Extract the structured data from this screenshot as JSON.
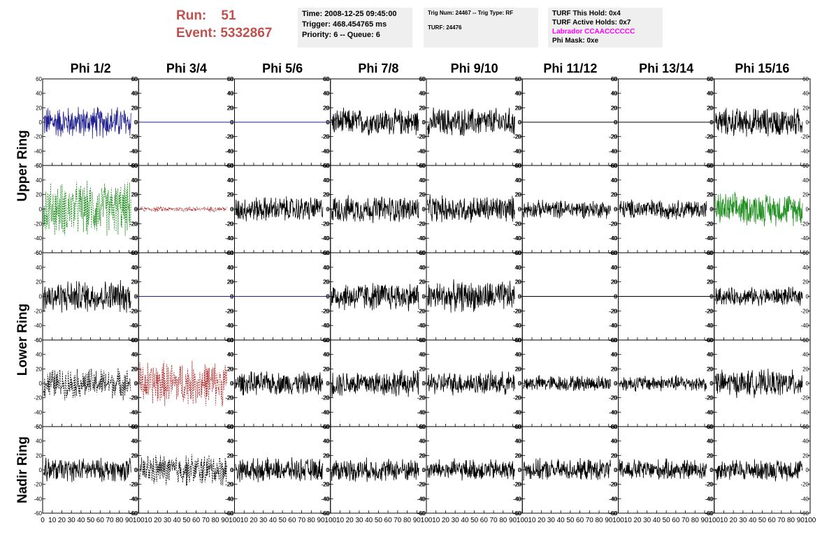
{
  "header": {
    "run_label": "Run:",
    "run_value": "51",
    "event_label": "Event:",
    "event_value": "5332867",
    "time_box": {
      "time": "Time: 2008-12-25 09:45:00",
      "trigger": "Trigger: 468.454765 ms",
      "priority": "Priority: 6 -- Queue: 6"
    },
    "trig_box": {
      "trig": "Trig Num: 24467 -- Trig Type: RF",
      "turf": "TURF: 24476"
    },
    "turf_box": {
      "this_hold": "TURF This Hold: 0x4",
      "active_holds": "TURF Active Holds: 0x7",
      "labrador": "Labrador CCAACCCCCC",
      "phi_mask": "Phi Mask: 0xe"
    }
  },
  "colors": {
    "run_text": "#c0504d",
    "labrador_text": "#ff00ff",
    "info_box_bg": "#efefef",
    "blue_trace": "#1f1f8f",
    "green_trace": "#1f8f1f",
    "red_trace": "#b03030",
    "black_trace": "#000000"
  },
  "chart_data": {
    "type": "line",
    "description_type": "waveform grid",
    "columns": [
      "Phi 1/2",
      "Phi 3/4",
      "Phi 5/6",
      "Phi 7/8",
      "Phi 9/10",
      "Phi 11/12",
      "Phi 13/14",
      "Phi 15/16"
    ],
    "ring_labels": [
      "Upper Ring",
      "Lower Ring",
      "Nadir Ring"
    ],
    "xlim": [
      0,
      100
    ],
    "ylim": [
      -60,
      60
    ],
    "y_ticks": [
      60,
      40,
      20,
      0,
      -20,
      -40,
      -60
    ],
    "x_ticks": [
      0,
      10,
      20,
      30,
      40,
      50,
      60,
      70,
      80,
      90,
      100
    ],
    "x_tick_labels_row": [
      "0",
      "10",
      "20",
      "30",
      "40",
      "50",
      "60",
      "70",
      "80",
      "90",
      "100"
    ],
    "panels": [
      [
        {
          "style": "solid",
          "color": "blue",
          "amplitude": 18,
          "flat": false
        },
        {
          "style": "flat",
          "color": "blue",
          "amplitude": 0,
          "flat": true
        },
        {
          "style": "flat",
          "color": "blue",
          "amplitude": 0,
          "flat": true
        },
        {
          "style": "solid",
          "color": "black",
          "amplitude": 15,
          "flat": false
        },
        {
          "style": "solid",
          "color": "black",
          "amplitude": 16,
          "flat": false
        },
        {
          "style": "flat",
          "color": "black",
          "amplitude": 0,
          "flat": true
        },
        {
          "style": "flat",
          "color": "black",
          "amplitude": 0,
          "flat": true
        },
        {
          "style": "solid",
          "color": "black",
          "amplitude": 16,
          "flat": false
        }
      ],
      [
        {
          "style": "dashed",
          "color": "green",
          "amplitude": 30,
          "flat": false
        },
        {
          "style": "dashed",
          "color": "red",
          "amplitude": 3,
          "flat": false
        },
        {
          "style": "solid",
          "color": "black",
          "amplitude": 14,
          "flat": false
        },
        {
          "style": "solid",
          "color": "black",
          "amplitude": 15,
          "flat": false
        },
        {
          "style": "solid",
          "color": "black",
          "amplitude": 15,
          "flat": false
        },
        {
          "style": "solid",
          "color": "black",
          "amplitude": 10,
          "flat": false
        },
        {
          "style": "solid",
          "color": "black",
          "amplitude": 11,
          "flat": false
        },
        {
          "style": "solid",
          "color": "green",
          "amplitude": 18,
          "flat": false
        }
      ],
      [
        {
          "style": "solid",
          "color": "black",
          "amplitude": 18,
          "flat": false
        },
        {
          "style": "flat",
          "color": "blue",
          "amplitude": 0,
          "flat": true
        },
        {
          "style": "flat",
          "color": "blue",
          "amplitude": 0,
          "flat": true
        },
        {
          "style": "solid",
          "color": "black",
          "amplitude": 16,
          "flat": false
        },
        {
          "style": "solid",
          "color": "black",
          "amplitude": 17,
          "flat": false
        },
        {
          "style": "flat",
          "color": "black",
          "amplitude": 0,
          "flat": true
        },
        {
          "style": "flat",
          "color": "black",
          "amplitude": 0,
          "flat": true
        },
        {
          "style": "solid",
          "color": "black",
          "amplitude": 10,
          "flat": false
        }
      ],
      [
        {
          "style": "dashed",
          "color": "black",
          "amplitude": 17,
          "flat": false
        },
        {
          "style": "dashed",
          "color": "red",
          "amplitude": 25,
          "flat": false
        },
        {
          "style": "solid",
          "color": "black",
          "amplitude": 13,
          "flat": false
        },
        {
          "style": "solid",
          "color": "black",
          "amplitude": 15,
          "flat": false
        },
        {
          "style": "solid",
          "color": "black",
          "amplitude": 13,
          "flat": false
        },
        {
          "style": "solid",
          "color": "black",
          "amplitude": 9,
          "flat": false
        },
        {
          "style": "solid",
          "color": "black",
          "amplitude": 9,
          "flat": false
        },
        {
          "style": "solid",
          "color": "black",
          "amplitude": 15,
          "flat": false
        }
      ],
      [
        {
          "style": "solid",
          "color": "black",
          "amplitude": 13,
          "flat": false
        },
        {
          "style": "dashed",
          "color": "black",
          "amplitude": 18,
          "flat": false
        },
        {
          "style": "solid",
          "color": "black",
          "amplitude": 13,
          "flat": false
        },
        {
          "style": "solid",
          "color": "black",
          "amplitude": 13,
          "flat": false
        },
        {
          "style": "solid",
          "color": "black",
          "amplitude": 12,
          "flat": false
        },
        {
          "style": "solid",
          "color": "black",
          "amplitude": 12,
          "flat": false
        },
        {
          "style": "solid",
          "color": "black",
          "amplitude": 12,
          "flat": false
        },
        {
          "style": "solid",
          "color": "black",
          "amplitude": 12,
          "flat": false
        }
      ]
    ]
  }
}
